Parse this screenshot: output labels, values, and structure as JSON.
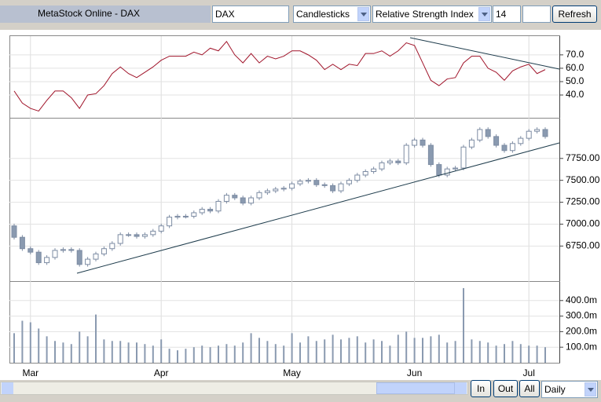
{
  "toolbar": {
    "title": "MetaStock Online - DAX",
    "symbol": "DAX",
    "chart_style": "Candlesticks",
    "indicator": "Relative Strength Index",
    "period": "14",
    "refresh": "Refresh"
  },
  "footer": {
    "zoom_in": "In",
    "zoom_out": "Out",
    "zoom_all": "All",
    "interval": "Daily"
  },
  "chart_data": [
    {
      "type": "line",
      "color": "#a0142a",
      "values": [
        43,
        34,
        30,
        28,
        36,
        43,
        43,
        38,
        30,
        40,
        41,
        47,
        56,
        61,
        56,
        53,
        57,
        61,
        66,
        69,
        69,
        69,
        72,
        70,
        75,
        73,
        80,
        70,
        64,
        71,
        64,
        69,
        67,
        69,
        73,
        73,
        70,
        66,
        59,
        63,
        59,
        63,
        62,
        71,
        71,
        73,
        69,
        73,
        79,
        77,
        64,
        51,
        47,
        52,
        53,
        64,
        69,
        69,
        60,
        57,
        51,
        58,
        61,
        63,
        56,
        59
      ],
      "ylim": [
        23,
        84
      ],
      "yticks": [
        {
          "value": 40,
          "label": "40.0"
        },
        {
          "value": 50,
          "label": "50.0"
        },
        {
          "value": 60,
          "label": "60.0"
        },
        {
          "value": 70,
          "label": "70.0"
        }
      ]
    },
    {
      "type": "candlestick",
      "up_color": "#ffffff",
      "down_color": "#8a9ab0",
      "edge_color": "#7d8ca3",
      "open": [
        6980,
        6850,
        6720,
        6680,
        6560,
        6620,
        6700,
        6710,
        6700,
        6540,
        6600,
        6660,
        6720,
        6780,
        6880,
        6880,
        6860,
        6880,
        6920,
        6980,
        7080,
        7090,
        7090,
        7130,
        7170,
        7150,
        7260,
        7330,
        7300,
        7240,
        7300,
        7360,
        7380,
        7400,
        7410,
        7460,
        7490,
        7500,
        7450,
        7440,
        7380,
        7460,
        7500,
        7560,
        7600,
        7630,
        7700,
        7720,
        7700,
        7900,
        7960,
        7900,
        7680,
        7560,
        7630,
        7640,
        7880,
        7960,
        8080,
        8000,
        7900,
        7840,
        7920,
        7980,
        8060,
        8080
      ],
      "high": [
        7005,
        6875,
        6745,
        6705,
        6645,
        6725,
        6735,
        6735,
        6725,
        6625,
        6685,
        6745,
        6805,
        6905,
        6905,
        6905,
        6905,
        6945,
        7005,
        7105,
        7115,
        7115,
        7155,
        7195,
        7195,
        7285,
        7355,
        7355,
        7325,
        7325,
        7385,
        7405,
        7425,
        7435,
        7485,
        7515,
        7525,
        7525,
        7475,
        7465,
        7485,
        7525,
        7585,
        7625,
        7655,
        7725,
        7745,
        7745,
        7925,
        7985,
        7985,
        7925,
        7705,
        7655,
        7665,
        7905,
        7985,
        8105,
        8105,
        8025,
        7925,
        7945,
        8005,
        8085,
        8105,
        8105
      ],
      "low": [
        6825,
        6695,
        6655,
        6535,
        6535,
        6595,
        6675,
        6675,
        6515,
        6515,
        6575,
        6635,
        6695,
        6755,
        6855,
        6835,
        6835,
        6855,
        6895,
        6955,
        7055,
        7065,
        7065,
        7105,
        7125,
        7125,
        7235,
        7275,
        7215,
        7215,
        7275,
        7335,
        7355,
        7375,
        7385,
        7435,
        7465,
        7425,
        7415,
        7355,
        7355,
        7435,
        7475,
        7535,
        7575,
        7605,
        7675,
        7675,
        7675,
        7875,
        7875,
        7655,
        7535,
        7535,
        7605,
        7615,
        7855,
        7935,
        7975,
        7875,
        7815,
        7815,
        7895,
        7955,
        8035,
        7975
      ],
      "close": [
        6850,
        6720,
        6680,
        6560,
        6620,
        6700,
        6710,
        6700,
        6540,
        6600,
        6660,
        6720,
        6780,
        6880,
        6880,
        6860,
        6880,
        6920,
        6980,
        7080,
        7090,
        7090,
        7130,
        7170,
        7150,
        7260,
        7330,
        7300,
        7240,
        7300,
        7360,
        7380,
        7400,
        7410,
        7460,
        7490,
        7500,
        7450,
        7440,
        7380,
        7460,
        7500,
        7560,
        7600,
        7630,
        7700,
        7720,
        7700,
        7900,
        7960,
        7900,
        7680,
        7560,
        7630,
        7640,
        7880,
        7960,
        8080,
        8000,
        7900,
        7840,
        7920,
        7980,
        8060,
        8080,
        8000
      ],
      "ylim": [
        6350,
        8205
      ],
      "yticks": [
        {
          "value": 6750,
          "label": "6750.00"
        },
        {
          "value": 7000,
          "label": "7000.00"
        },
        {
          "value": 7250,
          "label": "7250.00"
        },
        {
          "value": 7500,
          "label": "7500.00"
        },
        {
          "value": 7750,
          "label": "7750.00"
        }
      ]
    },
    {
      "type": "bar",
      "color": "#8a9ab0",
      "categories": [
        null,
        null,
        "Mar",
        null,
        null,
        null,
        null,
        null,
        null,
        null,
        null,
        null,
        null,
        null,
        null,
        null,
        null,
        null,
        "Apr",
        null,
        null,
        null,
        null,
        null,
        null,
        null,
        null,
        null,
        null,
        null,
        null,
        null,
        null,
        null,
        "May",
        null,
        null,
        null,
        null,
        null,
        null,
        null,
        null,
        null,
        null,
        null,
        null,
        null,
        null,
        "Jun",
        null,
        null,
        null,
        null,
        null,
        null,
        null,
        null,
        null,
        null,
        null,
        null,
        null,
        "Jul",
        null,
        null
      ],
      "values": [
        190,
        270,
        260,
        220,
        170,
        140,
        130,
        120,
        200,
        170,
        310,
        150,
        140,
        140,
        130,
        130,
        120,
        110,
        150,
        90,
        80,
        90,
        100,
        110,
        100,
        110,
        120,
        110,
        130,
        190,
        160,
        140,
        120,
        110,
        190,
        130,
        170,
        140,
        150,
        180,
        150,
        160,
        170,
        130,
        150,
        140,
        110,
        180,
        200,
        160,
        160,
        170,
        180,
        130,
        140,
        480,
        150,
        140,
        130,
        110,
        120,
        140,
        120,
        110,
        110,
        100
      ],
      "ylim": [
        0,
        520
      ],
      "yticks": [
        {
          "value": 100,
          "label": "100.0m"
        },
        {
          "value": 200,
          "label": "200.0m"
        },
        {
          "value": 300,
          "label": "300.0m"
        },
        {
          "value": 400,
          "label": "400.0m"
        }
      ]
    }
  ]
}
